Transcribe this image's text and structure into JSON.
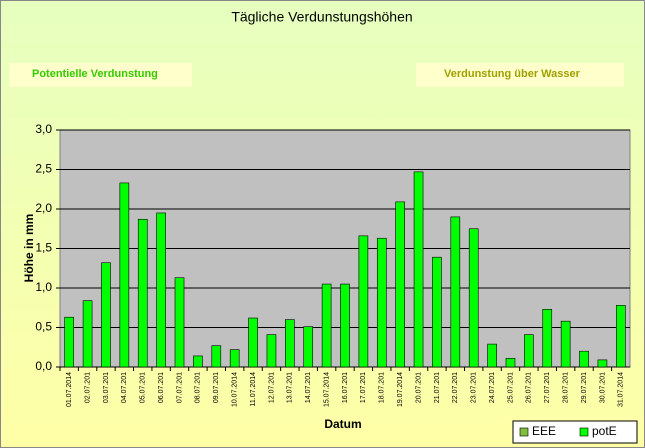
{
  "chart_data": {
    "type": "bar",
    "title": "Tägliche Verdunstungshöhen",
    "annotations": [
      "Potentielle Verdunstung",
      "Verdunstung über Wasser"
    ],
    "y_label": "Höhe in mm",
    "x_label": "Datum",
    "categories": [
      "01.07.2014",
      "02.07.201",
      "03.07.201",
      "04.07.201",
      "05.07.201",
      "06.07.201",
      "07.07.201",
      "08.07.201",
      "09.07.201",
      "10.07.2014",
      "11.07.2014",
      "12.07.201",
      "13.07.201",
      "14.07.201",
      "15.07.2014",
      "16.07.201",
      "17.07.201",
      "18.07.201",
      "19.07.2014",
      "20.07.201",
      "21.07.201",
      "22.07.201",
      "23.07.201",
      "24.07.201",
      "25.07.201",
      "26.07.201",
      "27.07.201",
      "28.07.201",
      "29.07.201",
      "30.07.201",
      "31.07.2014"
    ],
    "series": [
      {
        "name": "EEE",
        "color": "#7fbf3f",
        "values": [
          null,
          null,
          null,
          null,
          null,
          null,
          null,
          null,
          null,
          null,
          null,
          null,
          null,
          null,
          null,
          null,
          null,
          null,
          null,
          null,
          null,
          null,
          null,
          null,
          null,
          null,
          null,
          null,
          null,
          null,
          null
        ]
      },
      {
        "name": "potE",
        "color": "#00ff00",
        "values": [
          0.63,
          0.84,
          1.32,
          2.33,
          1.87,
          1.95,
          1.13,
          0.14,
          0.27,
          0.22,
          0.62,
          0.41,
          0.6,
          0.51,
          1.05,
          1.05,
          1.66,
          1.63,
          2.09,
          2.47,
          1.39,
          1.9,
          1.75,
          0.29,
          0.11,
          0.41,
          0.73,
          0.58,
          0.2,
          0.09,
          0.78
        ]
      }
    ],
    "ylim": [
      0,
      3
    ],
    "yticks": [
      {
        "value": 0,
        "label": "0,0"
      },
      {
        "value": 0.5,
        "label": "0,5"
      },
      {
        "value": 1,
        "label": "1,0"
      },
      {
        "value": 1.5,
        "label": "1,5"
      },
      {
        "value": 2,
        "label": "2,0"
      },
      {
        "value": 2.5,
        "label": "2,5"
      },
      {
        "value": 3,
        "label": "3,0"
      }
    ],
    "grid": true,
    "legend": "bottom-right"
  }
}
